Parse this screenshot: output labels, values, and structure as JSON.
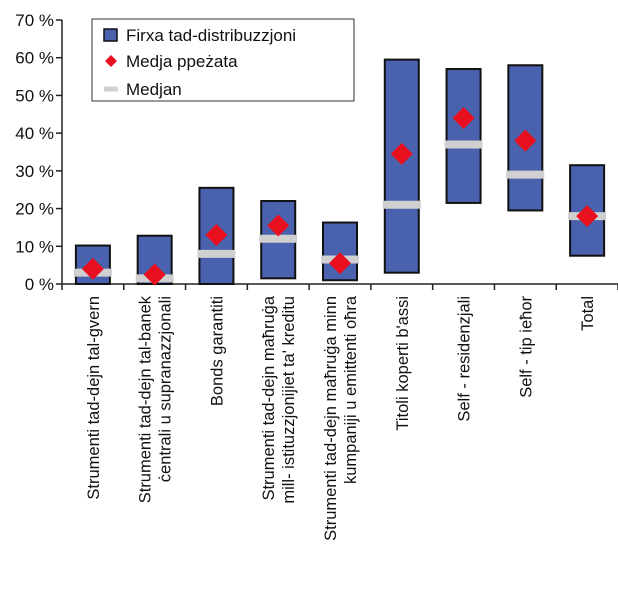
{
  "chart_data": {
    "type": "bar",
    "title": "",
    "xlabel": "",
    "ylabel": "",
    "ylim": [
      0,
      70
    ],
    "yticks": [
      0,
      10,
      20,
      30,
      40,
      50,
      60,
      70
    ],
    "ytick_labels": [
      "0 %",
      "10 %",
      "20 %",
      "30 %",
      "40 %",
      "50 %",
      "60 %",
      "70 %"
    ],
    "grid": false,
    "legend_position": "top-left",
    "categories": [
      [
        "Strumenti tad-dejn tal-gvern"
      ],
      [
        "Strumenti tad-dejn tal-banek",
        "ċentrali u supranazzjonali"
      ],
      [
        "Bonds garantiti"
      ],
      [
        "Strumenti tad-dejn maħruġa",
        "mill- istituzzjonijiet ta' kreditu"
      ],
      [
        "Strumenti tad-dejn maħruġa minn",
        "kumpaniji u emittenti oħra"
      ],
      [
        "Titoli koperti b'assi"
      ],
      [
        "Self - residenzjali"
      ],
      [
        "Self - tip ieħor"
      ],
      [
        "Total"
      ]
    ],
    "series": [
      {
        "name": "Firxa tad-distribuzzjoni",
        "kind": "range",
        "low": [
          0,
          0,
          0,
          1.5,
          1,
          3,
          21.5,
          19.5,
          7.5
        ],
        "high": [
          10.2,
          12.8,
          25.5,
          22,
          16.3,
          59.5,
          57,
          58,
          31.5
        ]
      },
      {
        "name": "Medja ppeżata",
        "kind": "marker",
        "values": [
          4,
          2.5,
          13,
          15.5,
          5.5,
          34.5,
          44,
          38,
          18
        ]
      },
      {
        "name": "Medjan",
        "kind": "line-marker",
        "values": [
          3,
          1.5,
          8,
          12,
          6.5,
          21,
          37,
          29,
          18
        ]
      }
    ],
    "colors": {
      "bar_fill": "#4a62ad",
      "bar_stroke": "#111111",
      "mean": "#e8101e",
      "median": "#d0d0d0"
    }
  }
}
